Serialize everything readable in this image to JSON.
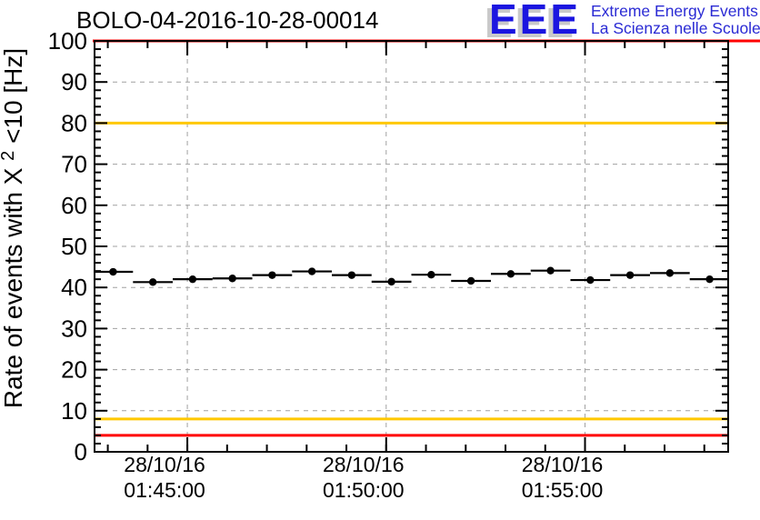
{
  "page": {
    "logo": {
      "letters": "EEE",
      "line1": "Extreme Energy Events",
      "line2": "La Scienza nelle Scuole",
      "letters_color": "#1b15e0",
      "text_color": "#2b2bd4",
      "shadow_color": "#c9c9c9"
    }
  },
  "chart_data": {
    "type": "scatter",
    "title": "BOLO-04-2016-10-28-00014",
    "ylabel": {
      "pre": "Rate of events with X",
      "sup": "2",
      "post": "<10 [Hz]"
    },
    "y_axis": {
      "min": 0,
      "max": 100,
      "major_step": 10,
      "minor_step": 2,
      "grid": true
    },
    "x_axis": {
      "start": "01:42:40",
      "end": "01:58:36",
      "minor_step_s": 60,
      "grid": true,
      "major_ticks": [
        {
          "time": "01:45:00",
          "label_line1": "28/10/16",
          "label_line2": "01:45:00"
        },
        {
          "time": "01:50:00",
          "label_line1": "28/10/16",
          "label_line2": "01:50:00"
        },
        {
          "time": "01:55:00",
          "label_line1": "28/10/16",
          "label_line2": "01:55:00"
        }
      ]
    },
    "series": [
      {
        "name": "event-rate",
        "marker": "filled-circle",
        "color": "#000000",
        "bin_halfwidth_s": 30,
        "points": [
          {
            "t": "01:43:08",
            "y": 43.8
          },
          {
            "t": "01:44:08",
            "y": 41.3
          },
          {
            "t": "01:45:08",
            "y": 42.0
          },
          {
            "t": "01:46:08",
            "y": 42.2
          },
          {
            "t": "01:47:08",
            "y": 43.0
          },
          {
            "t": "01:48:08",
            "y": 43.9
          },
          {
            "t": "01:49:08",
            "y": 43.0
          },
          {
            "t": "01:50:08",
            "y": 41.4
          },
          {
            "t": "01:51:08",
            "y": 43.1
          },
          {
            "t": "01:52:08",
            "y": 41.6
          },
          {
            "t": "01:53:08",
            "y": 43.3
          },
          {
            "t": "01:54:08",
            "y": 44.1
          },
          {
            "t": "01:55:08",
            "y": 41.8
          },
          {
            "t": "01:56:08",
            "y": 43.0
          },
          {
            "t": "01:57:08",
            "y": 43.5
          },
          {
            "t": "01:58:08",
            "y": 42.0
          }
        ]
      }
    ],
    "threshold_lines": [
      {
        "y": 100,
        "color": "#ff0000",
        "full_width": true
      },
      {
        "y": 80,
        "color": "#ffc800",
        "full_width": false
      },
      {
        "y": 8,
        "color": "#ffc800",
        "full_width": false
      },
      {
        "y": 4,
        "color": "#ff0000",
        "full_width": false
      }
    ],
    "grid_color": "#a0a0a0",
    "grid_style": "dashed",
    "legend": "none"
  }
}
